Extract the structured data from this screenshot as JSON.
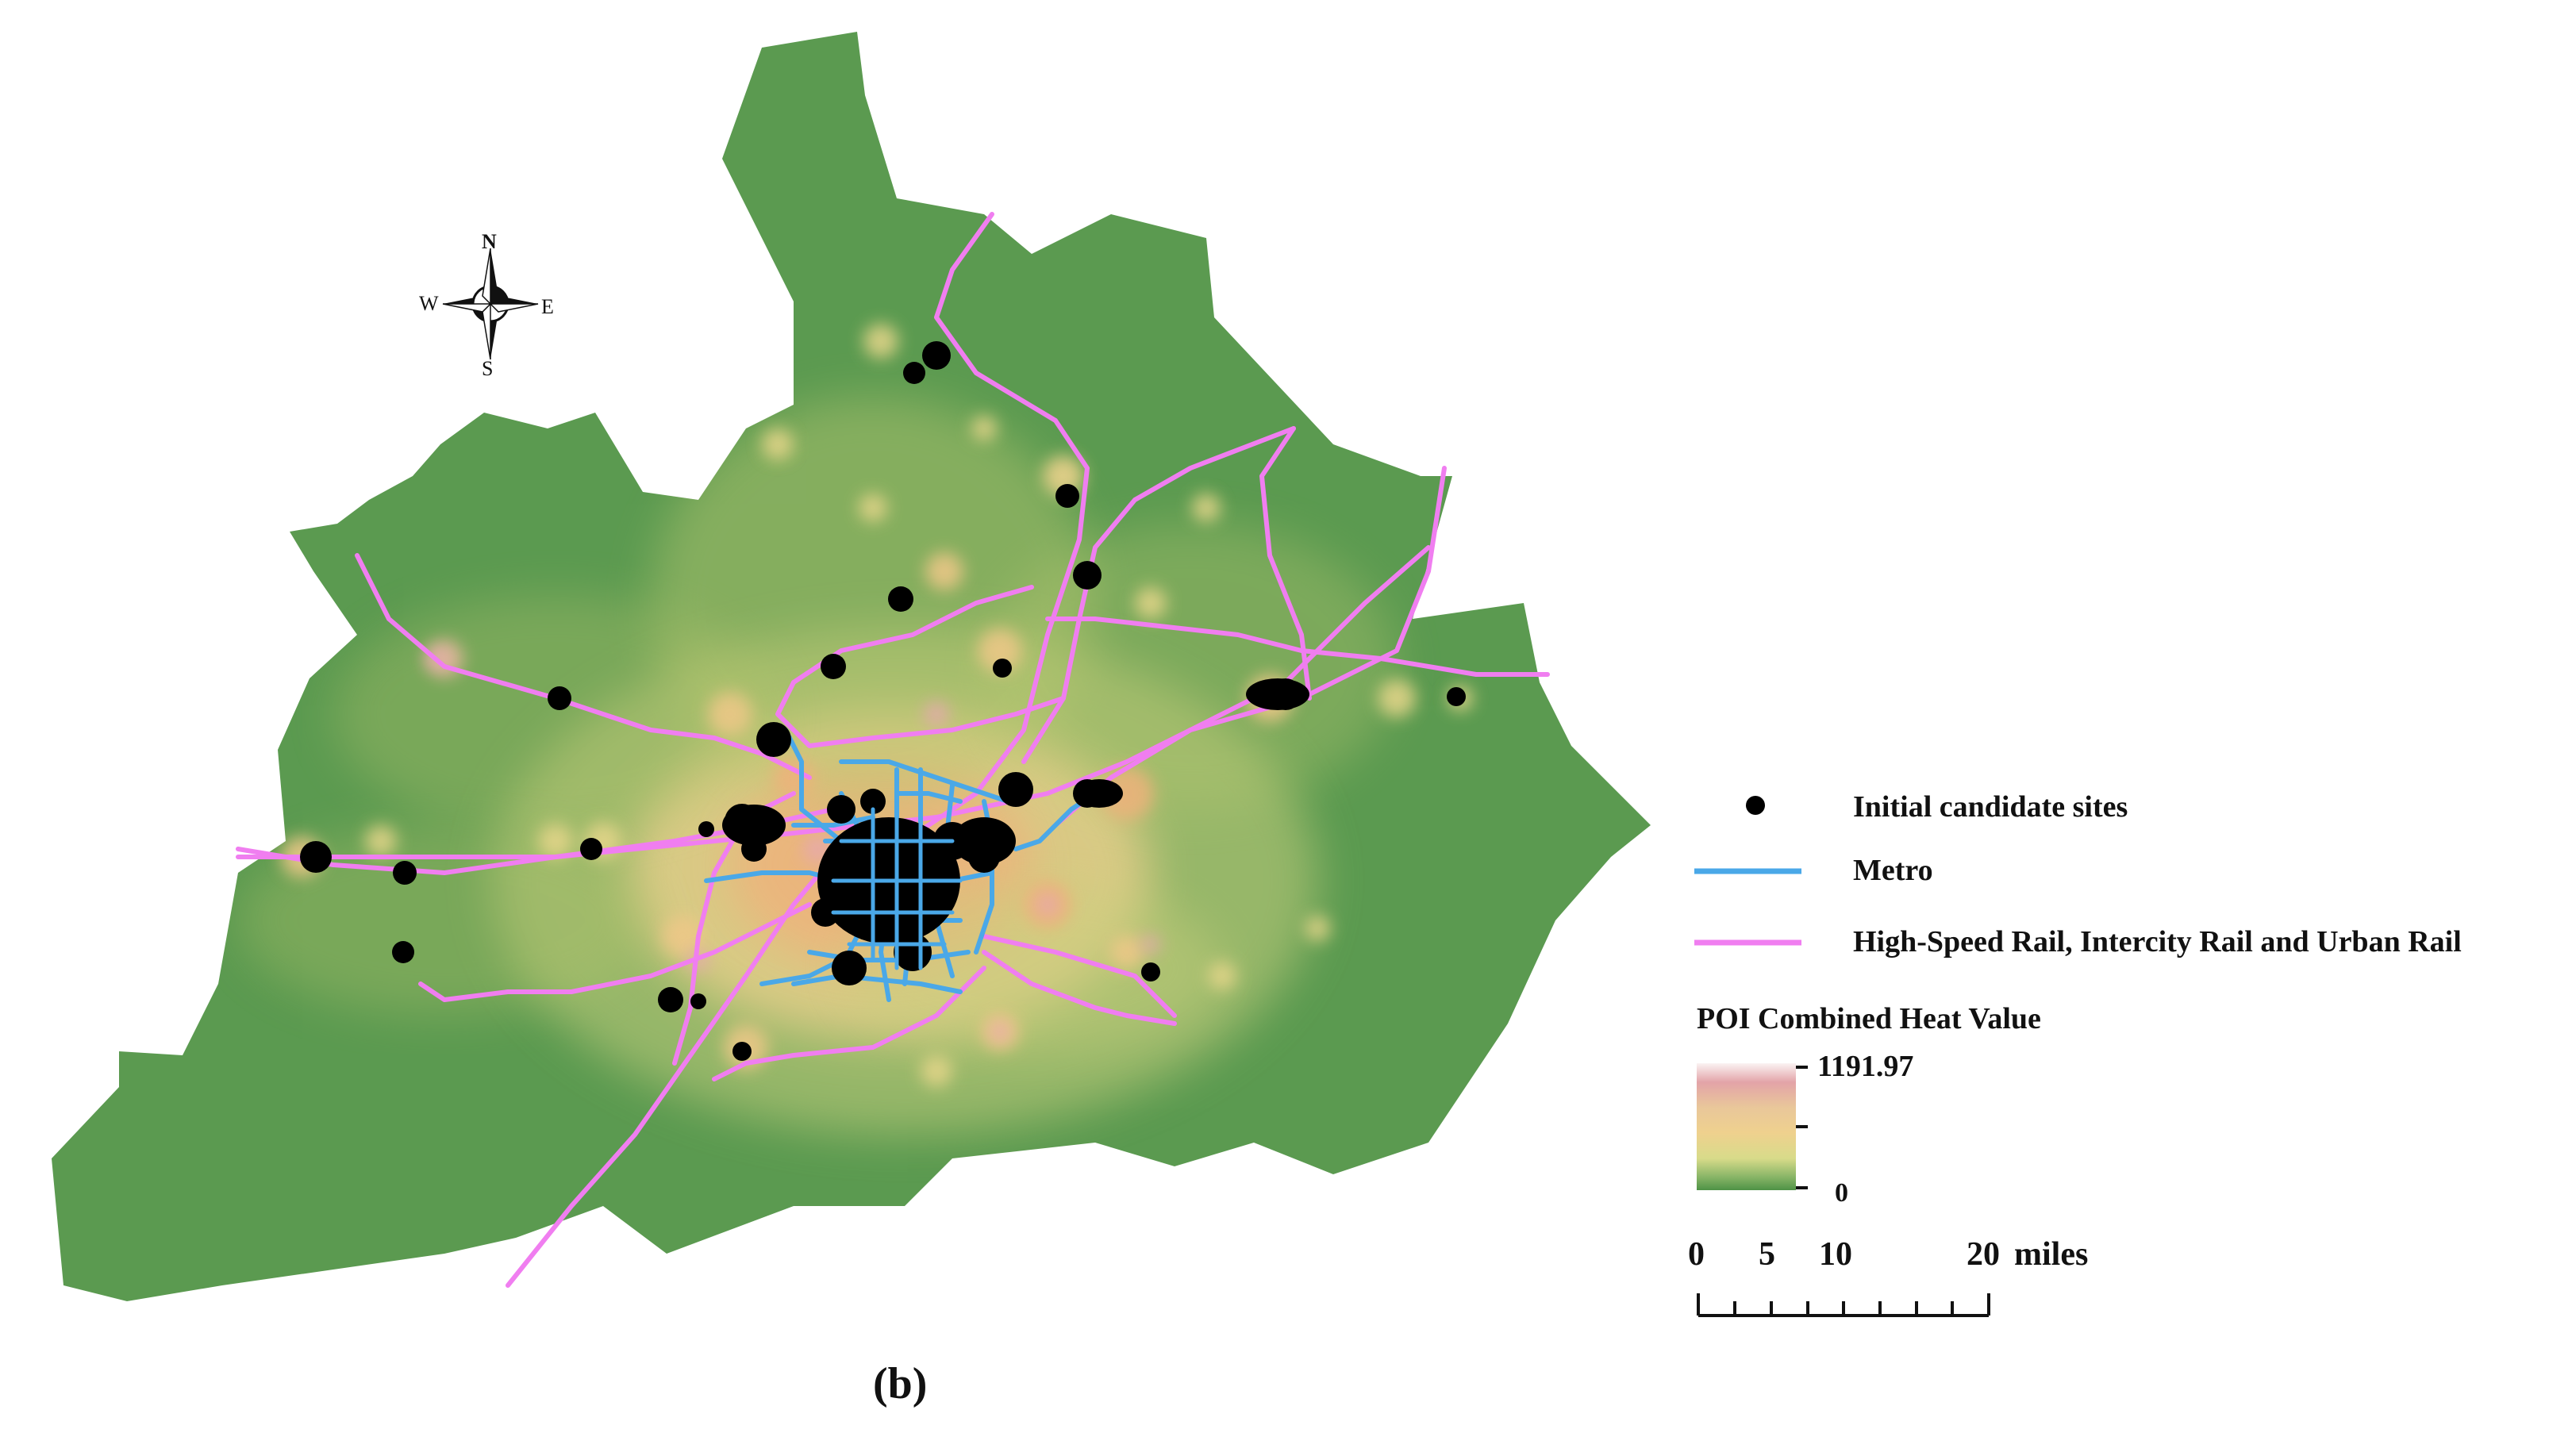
{
  "compass": {
    "n": "N",
    "s": "S",
    "e": "E",
    "w": "W"
  },
  "legend": {
    "sites_label": "Initial candidate sites",
    "metro_label": "Metro",
    "rail_label": "High-Speed Rail, Intercity Rail and Urban Rail",
    "heat_title": "POI Combined Heat Value",
    "heat_max": "1191.97",
    "heat_min": "0",
    "colors": {
      "metro": "#4aa8e8",
      "rail": "#f07ef0",
      "site": "#000000",
      "background": "#5b9a50",
      "heat_low": "#5b9a50",
      "heat_mid": "#f5e79a",
      "heat_high": "#e8a06a",
      "heat_peak": "#f8e8ee"
    }
  },
  "scale_bar": {
    "ticks": [
      "0",
      "5",
      "10",
      "20"
    ],
    "unit": "miles"
  },
  "panel_label": "(b)"
}
